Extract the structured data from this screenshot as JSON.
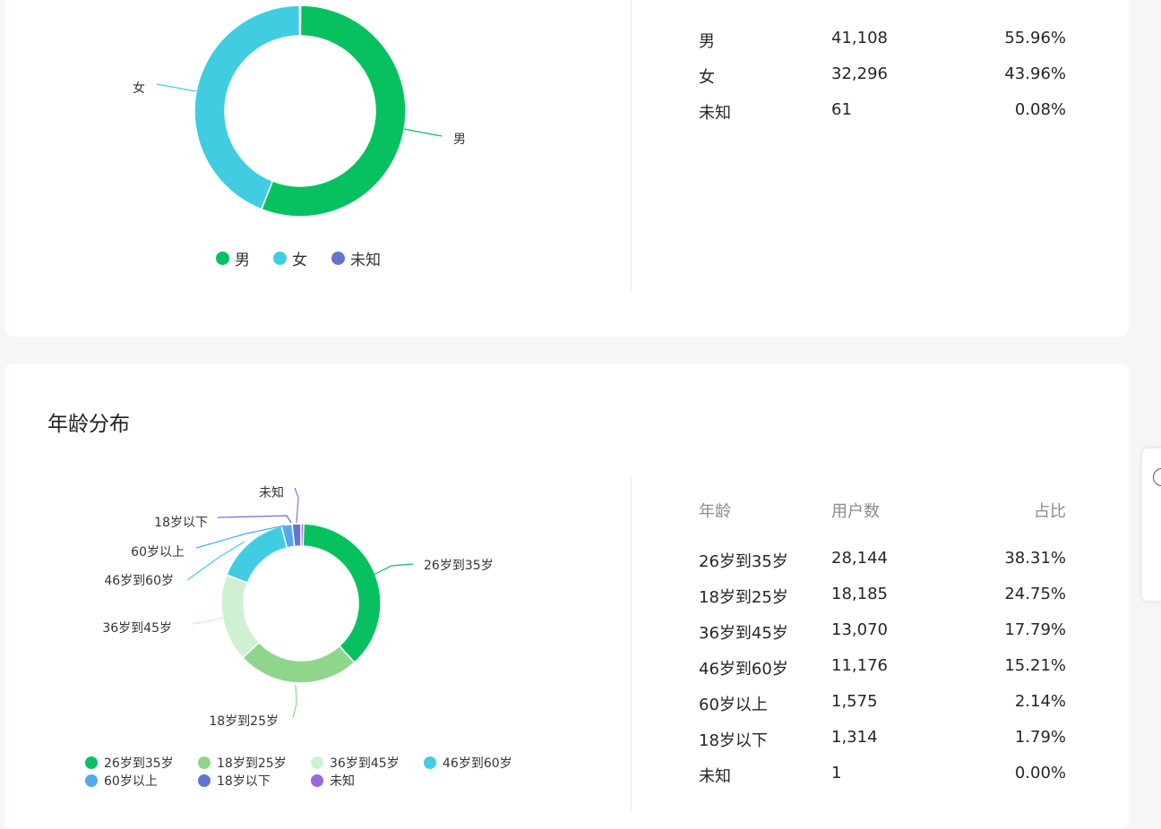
{
  "colors": {
    "green": "#07c160",
    "cyan": "#40cde1",
    "indigo": "#6573d4",
    "light_green": "#8fd58c",
    "pale_green": "#d0f0d4",
    "blue": "#52a8ef",
    "purple": "#9a66dd"
  },
  "gender": {
    "table": [
      {
        "name": "男",
        "count": "41,108",
        "pct": "55.96%"
      },
      {
        "name": "女",
        "count": "32,296",
        "pct": "43.96%"
      },
      {
        "name": "未知",
        "count": "61",
        "pct": "0.08%"
      }
    ],
    "legend": [
      "男",
      "女",
      "未知"
    ]
  },
  "age": {
    "title": "年龄分布",
    "headers": {
      "c1": "年龄",
      "c2": "用户数",
      "c3": "占比"
    },
    "table": [
      {
        "name": "26岁到35岁",
        "count": "28,144",
        "pct": "38.31%"
      },
      {
        "name": "18岁到25岁",
        "count": "18,185",
        "pct": "24.75%"
      },
      {
        "name": "36岁到45岁",
        "count": "13,070",
        "pct": "17.79%"
      },
      {
        "name": "46岁到60岁",
        "count": "11,176",
        "pct": "15.21%"
      },
      {
        "name": "60岁以上",
        "count": "1,575",
        "pct": "2.14%"
      },
      {
        "name": "18岁以下",
        "count": "1,314",
        "pct": "1.79%"
      },
      {
        "name": "未知",
        "count": "1",
        "pct": "0.00%"
      }
    ],
    "legend": [
      "26岁到35岁",
      "18岁到25岁",
      "36岁到45岁",
      "46岁到60岁",
      "60岁以上",
      "18岁以下",
      "未知"
    ]
  },
  "chart_data": [
    {
      "type": "pie",
      "donut": true,
      "categories": [
        "男",
        "女",
        "未知"
      ],
      "values": [
        41108,
        32296,
        61
      ],
      "percentages": [
        55.96,
        43.96,
        0.08
      ],
      "colors": [
        "#07c160",
        "#40cde1",
        "#6573d4"
      ],
      "legend_position": "bottom"
    },
    {
      "type": "pie",
      "donut": true,
      "title": "年龄分布",
      "categories": [
        "26岁到35岁",
        "18岁到25岁",
        "36岁到45岁",
        "46岁到60岁",
        "60岁以上",
        "18岁以下",
        "未知"
      ],
      "values": [
        28144,
        18185,
        13070,
        11176,
        1575,
        1314,
        1
      ],
      "percentages": [
        38.31,
        24.75,
        17.79,
        15.21,
        2.14,
        1.79,
        0.0
      ],
      "colors": [
        "#07c160",
        "#8fd58c",
        "#d0f0d4",
        "#40cde1",
        "#52a8ef",
        "#6573d4",
        "#9a66dd"
      ],
      "legend_position": "bottom"
    }
  ]
}
